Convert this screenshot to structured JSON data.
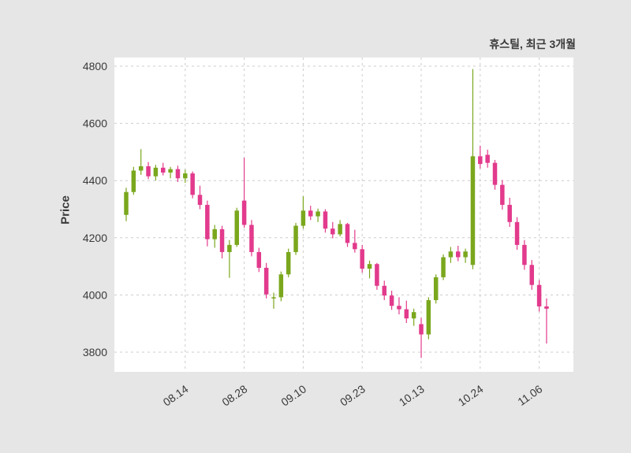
{
  "chart_data": {
    "type": "candlestick",
    "title": "휴스틸, 최근 3개월",
    "ylabel": "Price",
    "yticks": [
      3800,
      4000,
      4200,
      4400,
      4600,
      4800
    ],
    "ylim": [
      3730,
      4830
    ],
    "grid": true,
    "legend": false,
    "xticks": [
      {
        "index": 8,
        "label": "08.14"
      },
      {
        "index": 16,
        "label": "08.28"
      },
      {
        "index": 24,
        "label": "09.10"
      },
      {
        "index": 32,
        "label": "09.23"
      },
      {
        "index": 40,
        "label": "10.13"
      },
      {
        "index": 48,
        "label": "10.24"
      },
      {
        "index": 56,
        "label": "11.06"
      }
    ],
    "colors": {
      "up": "#7aa71d",
      "down": "#e23a8c",
      "grid": "#cccccc",
      "plot_bg": "#ffffff",
      "fig_bg": "#e6e6e6",
      "text": "#3a3a3a"
    },
    "candles": [
      [
        4280,
        4375,
        4258,
        4360
      ],
      [
        4360,
        4448,
        4350,
        4435
      ],
      [
        4435,
        4510,
        4420,
        4450
      ],
      [
        4450,
        4465,
        4405,
        4415
      ],
      [
        4415,
        4455,
        4400,
        4445
      ],
      [
        4445,
        4462,
        4418,
        4428
      ],
      [
        4428,
        4448,
        4408,
        4440
      ],
      [
        4440,
        4452,
        4395,
        4408
      ],
      [
        4408,
        4438,
        4392,
        4425
      ],
      [
        4425,
        4432,
        4338,
        4350
      ],
      [
        4350,
        4382,
        4300,
        4315
      ],
      [
        4315,
        4330,
        4170,
        4195
      ],
      [
        4195,
        4245,
        4165,
        4230
      ],
      [
        4230,
        4242,
        4128,
        4150
      ],
      [
        4150,
        4192,
        4060,
        4175
      ],
      [
        4175,
        4305,
        4168,
        4295
      ],
      [
        4330,
        4480,
        4235,
        4245
      ],
      [
        4245,
        4262,
        4135,
        4150
      ],
      [
        4150,
        4165,
        4080,
        4095
      ],
      [
        4095,
        4112,
        3988,
        4002
      ],
      [
        3988,
        4008,
        3952,
        3992
      ],
      [
        3992,
        4082,
        3978,
        4072
      ],
      [
        4072,
        4162,
        4062,
        4150
      ],
      [
        4150,
        4252,
        4140,
        4242
      ],
      [
        4242,
        4345,
        4232,
        4295
      ],
      [
        4295,
        4312,
        4262,
        4275
      ],
      [
        4275,
        4302,
        4255,
        4292
      ],
      [
        4292,
        4300,
        4218,
        4232
      ],
      [
        4232,
        4255,
        4198,
        4212
      ],
      [
        4212,
        4262,
        4205,
        4248
      ],
      [
        4248,
        4252,
        4168,
        4182
      ],
      [
        4182,
        4228,
        4148,
        4160
      ],
      [
        4160,
        4175,
        4078,
        4092
      ],
      [
        4092,
        4120,
        4058,
        4108
      ],
      [
        4108,
        4112,
        4018,
        4032
      ],
      [
        4032,
        4050,
        3982,
        3998
      ],
      [
        3998,
        4015,
        3948,
        3962
      ],
      [
        3962,
        3992,
        3932,
        3950
      ],
      [
        3950,
        3980,
        3902,
        3918
      ],
      [
        3918,
        3952,
        3892,
        3940
      ],
      [
        3898,
        3920,
        3780,
        3862
      ],
      [
        3862,
        3992,
        3845,
        3982
      ],
      [
        3982,
        4072,
        3970,
        4062
      ],
      [
        4062,
        4142,
        4052,
        4132
      ],
      [
        4132,
        4168,
        4112,
        4152
      ],
      [
        4152,
        4172,
        4118,
        4132
      ],
      [
        4132,
        4162,
        4112,
        4152
      ],
      [
        4105,
        4790,
        4090,
        4485
      ],
      [
        4485,
        4522,
        4442,
        4458
      ],
      [
        4490,
        4508,
        4445,
        4462
      ],
      [
        4462,
        4472,
        4368,
        4385
      ],
      [
        4385,
        4402,
        4298,
        4315
      ],
      [
        4315,
        4340,
        4238,
        4255
      ],
      [
        4255,
        4272,
        4158,
        4175
      ],
      [
        4175,
        4192,
        4088,
        4105
      ],
      [
        4105,
        4122,
        4018,
        4035
      ],
      [
        4035,
        4052,
        3942,
        3960
      ],
      [
        3960,
        3988,
        3830,
        3952
      ]
    ]
  }
}
